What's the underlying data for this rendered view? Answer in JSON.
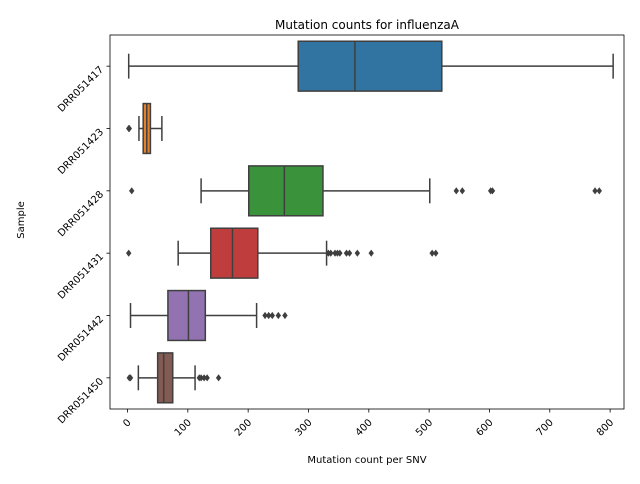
{
  "chart_data": {
    "type": "box",
    "orientation": "horizontal",
    "title": "Mutation counts for influenzaA",
    "xlabel": "Mutation count per SNV",
    "ylabel": "Sample",
    "xlim": [
      -29,
      823
    ],
    "xticks": [
      0,
      100,
      200,
      300,
      400,
      500,
      600,
      700,
      800
    ],
    "xtick_labels": [
      "0",
      "100",
      "200",
      "300",
      "400",
      "500",
      "600",
      "700",
      "800"
    ],
    "grid": false,
    "legend": "none",
    "categories": [
      "DRR051417",
      "DRR051423",
      "DRR051428",
      "DRR051431",
      "DRR051442",
      "DRR051450"
    ],
    "boxes": [
      {
        "label": "DRR051417",
        "color": "#3274a1",
        "whisker_low": 2,
        "q1": 283,
        "median": 377,
        "q3": 521,
        "whisker_high": 805,
        "fliers": []
      },
      {
        "label": "DRR051423",
        "color": "#e1812c",
        "whisker_low": 19,
        "q1": 26,
        "median": 32,
        "q3": 38,
        "whisker_high": 57,
        "fliers": [
          2,
          3
        ]
      },
      {
        "label": "DRR051428",
        "color": "#3a923a",
        "whisker_low": 122,
        "q1": 201,
        "median": 260,
        "q3": 324,
        "whisker_high": 501,
        "fliers": [
          7,
          545,
          555,
          602,
          605,
          775,
          782
        ]
      },
      {
        "label": "DRR051431",
        "color": "#c03d3e",
        "whisker_low": 84,
        "q1": 138,
        "median": 174,
        "q3": 216,
        "whisker_high": 330,
        "fliers": [
          2,
          333,
          337,
          344,
          348,
          352,
          363,
          368,
          381,
          404,
          505,
          511
        ]
      },
      {
        "label": "DRR051442",
        "color": "#9372b2",
        "whisker_low": 5,
        "q1": 67,
        "median": 101,
        "q3": 129,
        "whisker_high": 214,
        "fliers": [
          228,
          234,
          240,
          250,
          261
        ]
      },
      {
        "label": "DRR051450",
        "color": "#845b53",
        "whisker_low": 18,
        "q1": 50,
        "median": 60,
        "q3": 75,
        "whisker_high": 112,
        "fliers": [
          3,
          5,
          119,
          122,
          127,
          132,
          151
        ]
      }
    ]
  }
}
